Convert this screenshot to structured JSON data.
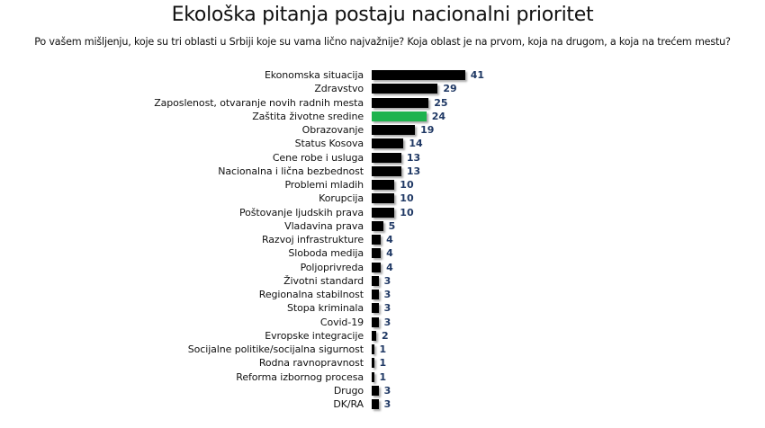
{
  "title": "Ekološka pitanja postaju nacionalni prioritet",
  "subtitle": "Po vašem mišljenju, koje su tri oblasti u Srbiji koje su vama lično najvažnije? Koja oblast je na prvom, koja na drugom, a koja na trećem mestu?",
  "colors": {
    "default_bar": "#000000",
    "highlight_bar": "#1eb34e",
    "value_label": "#1f3864"
  },
  "chart_data": {
    "type": "bar",
    "orientation": "horizontal",
    "title": "Ekološka pitanja postaju nacionalni prioritet",
    "subtitle": "Po vašem mišljenju, koje su tri oblasti u Srbiji koje su vama lično najvažnije? Koja oblast je na prvom, koja na drugom, a koja na trećem mestu?",
    "xlabel": "",
    "ylabel": "",
    "grid": false,
    "legend": null,
    "highlighted_category": "Zaštita životne sredine",
    "categories": [
      "Ekonomska situacija",
      "Zdravstvo",
      "Zaposlenost, otvaranje novih radnih mesta",
      "Zaštita životne sredine",
      "Obrazovanje",
      "Status Kosova",
      "Cene robe i usluga",
      "Nacionalna i lična bezbednost",
      "Problemi mladih",
      "Korupcija",
      "Poštovanje ljudskih prava",
      "Vladavina prava",
      "Razvoj infrastrukture",
      "Sloboda medija",
      "Poljoprivreda",
      "Životni standard",
      "Regionalna stabilnost",
      "Stopa kriminala",
      "Covid-19",
      "Evropske integracije",
      "Socijalne politike/socijalna sigurnost",
      "Rodna ravnopravnost",
      "Reforma izbornog procesa",
      "Drugo",
      "DK/RA"
    ],
    "values": [
      41,
      29,
      25,
      24,
      19,
      14,
      13,
      13,
      10,
      10,
      10,
      5,
      4,
      4,
      4,
      3,
      3,
      3,
      3,
      2,
      1,
      1,
      1,
      3,
      3
    ],
    "xlim": [
      0,
      41
    ]
  }
}
